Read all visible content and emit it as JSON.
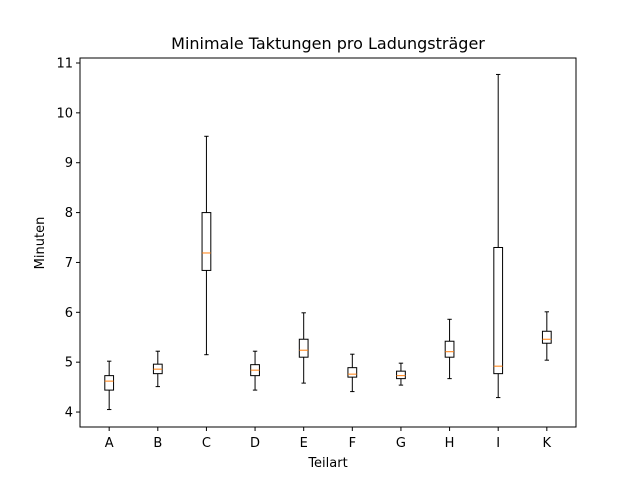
{
  "chart_data": {
    "type": "box",
    "title": "Minimale Taktungen pro Ladungsträger",
    "xlabel": "Teilart",
    "ylabel": "Minuten",
    "categories": [
      "A",
      "B",
      "C",
      "D",
      "E",
      "F",
      "G",
      "H",
      "I",
      "K"
    ],
    "ylim": [
      3.7,
      11.1
    ],
    "yticks": [
      4,
      5,
      6,
      7,
      8,
      9,
      10,
      11
    ],
    "boxes": [
      {
        "min": 4.05,
        "q1": 4.44,
        "median": 4.62,
        "q3": 4.73,
        "max": 5.02
      },
      {
        "min": 4.51,
        "q1": 4.77,
        "median": 4.86,
        "q3": 4.96,
        "max": 5.22
      },
      {
        "min": 5.15,
        "q1": 6.84,
        "median": 7.19,
        "q3": 8.0,
        "max": 9.53
      },
      {
        "min": 4.44,
        "q1": 4.73,
        "median": 4.84,
        "q3": 4.95,
        "max": 5.22
      },
      {
        "min": 4.58,
        "q1": 5.1,
        "median": 5.24,
        "q3": 5.46,
        "max": 5.99
      },
      {
        "min": 4.41,
        "q1": 4.7,
        "median": 4.76,
        "q3": 4.89,
        "max": 5.16
      },
      {
        "min": 4.54,
        "q1": 4.67,
        "median": 4.73,
        "q3": 4.82,
        "max": 4.98
      },
      {
        "min": 4.67,
        "q1": 5.1,
        "median": 5.21,
        "q3": 5.42,
        "max": 5.86
      },
      {
        "min": 4.29,
        "q1": 4.77,
        "median": 4.92,
        "q3": 7.3,
        "max": 10.77
      },
      {
        "min": 5.04,
        "q1": 5.38,
        "median": 5.46,
        "q3": 5.62,
        "max": 6.01
      }
    ],
    "grid": false,
    "colors": {
      "box": "#000000",
      "median": "#ff7f0e"
    }
  }
}
